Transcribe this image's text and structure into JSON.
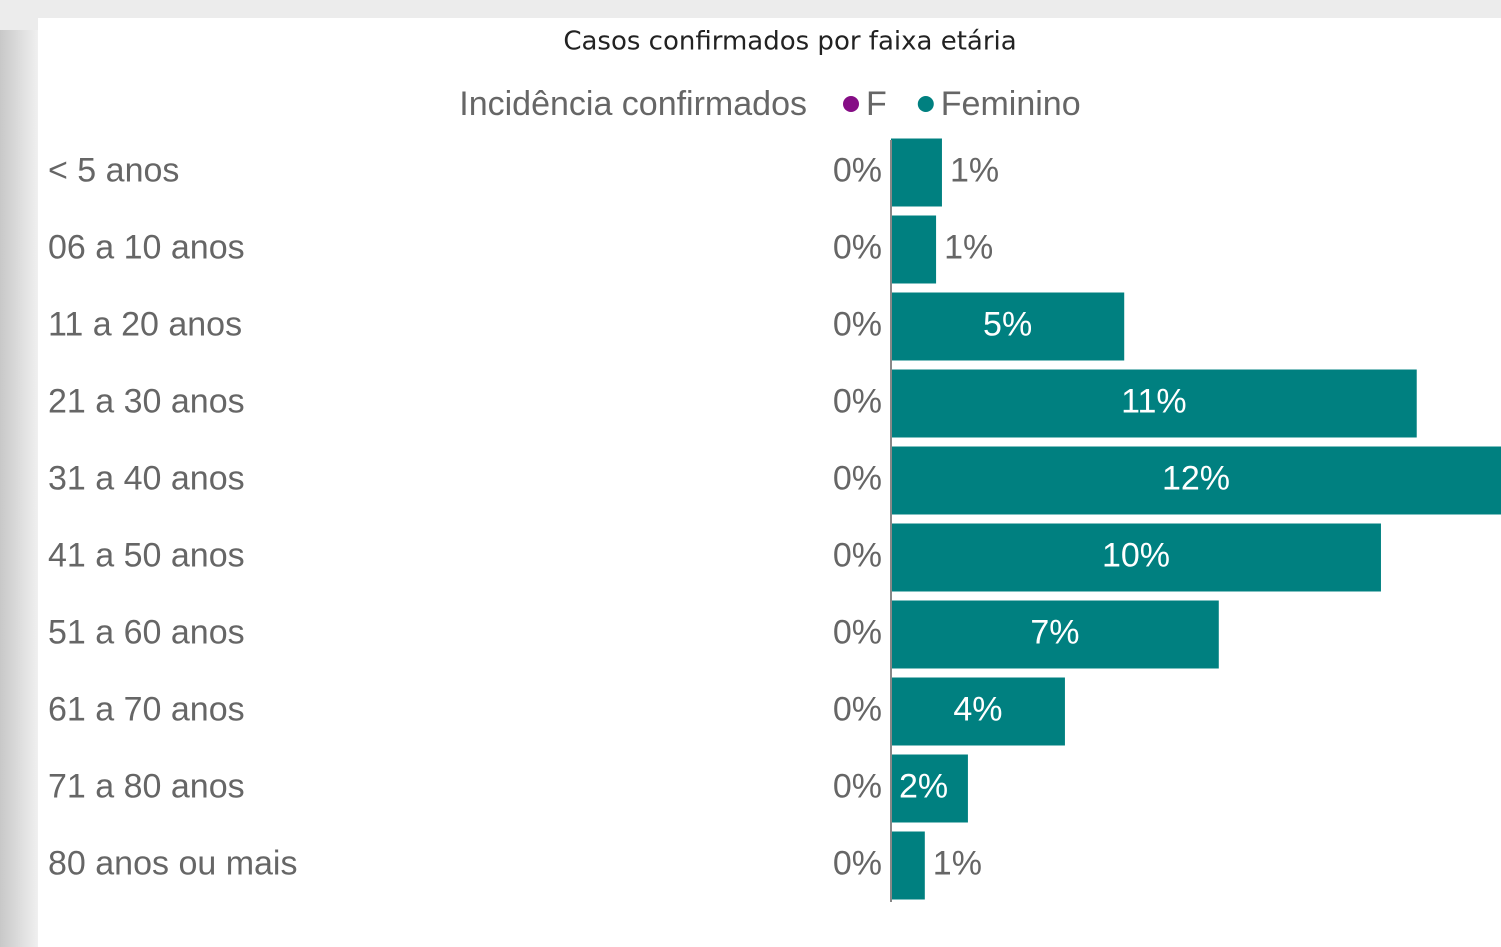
{
  "chart_data": {
    "type": "bar",
    "orientation": "horizontal",
    "title": "Casos confirmados por faixa etária",
    "legend_title": "Incidência confirmados",
    "categories": [
      "< 5 anos",
      "06 a 10 anos",
      "11 a 20 anos",
      "21 a 30 anos",
      "31 a 40 anos",
      "41 a 50 anos",
      "51 a 60 anos",
      "61 a 70 anos",
      "71 a 80 anos",
      "80 anos ou mais"
    ],
    "series": [
      {
        "name": "F",
        "color": "#850d85",
        "values": [
          0,
          0,
          0,
          0,
          0,
          0,
          0,
          0,
          0,
          0
        ],
        "value_labels": [
          "0%",
          "0%",
          "0%",
          "0%",
          "0%",
          "0%",
          "0%",
          "0%",
          "0%",
          "0%"
        ]
      },
      {
        "name": "Feminino",
        "color": "#008080",
        "values": [
          1.04,
          0.92,
          4.76,
          10.73,
          12.45,
          10.0,
          6.69,
          3.55,
          1.57,
          0.69
        ],
        "value_labels": [
          "1%",
          "1%",
          "5%",
          "11%",
          "12%",
          "10%",
          "7%",
          "4%",
          "2%",
          "1%"
        ]
      }
    ],
    "xlim": [
      0,
      12.45
    ]
  }
}
